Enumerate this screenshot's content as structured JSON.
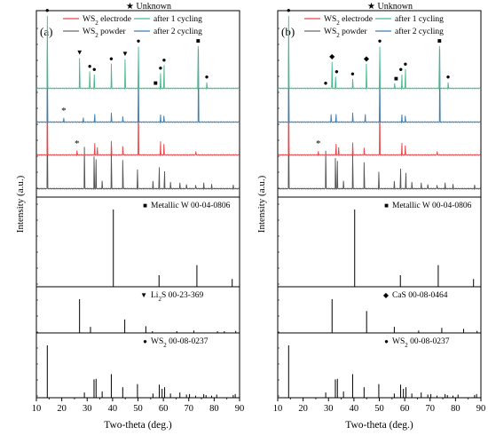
{
  "chart_data": [
    {
      "type": "line",
      "panel_label": "(a)",
      "header_note": "★ Unknown",
      "xlabel": "Two-theta (deg.)",
      "ylabel": "Intensity (a.u.)",
      "xlim": [
        10,
        90
      ],
      "x_ticks": [
        10,
        20,
        30,
        40,
        50,
        60,
        70,
        80,
        90
      ],
      "legend": [
        {
          "label": "WS",
          "sub": "2",
          "rest": " electrode",
          "color": "#e8474c"
        },
        {
          "label": "after 1 cycling",
          "sub": "",
          "rest": "",
          "color": "#46b98a"
        },
        {
          "label": "WS",
          "sub": "2",
          "rest": " powder",
          "color": "#6b6b6b"
        },
        {
          "label": "after 2 cycling",
          "sub": "",
          "rest": "",
          "color": "#3b7fb3"
        }
      ],
      "series": [
        {
          "name": "WS2 powder",
          "color": "#555555",
          "peaks": [
            [
              14.3,
              0.95
            ],
            [
              28.9,
              0.55
            ],
            [
              32.7,
              0.42
            ],
            [
              33.5,
              0.38
            ],
            [
              35.9,
              0.1
            ],
            [
              39.5,
              0.48
            ],
            [
              44.0,
              0.38
            ],
            [
              49.8,
              0.25
            ],
            [
              55.9,
              0.1
            ],
            [
              58.4,
              0.28
            ],
            [
              60.5,
              0.22
            ],
            [
              62.8,
              0.08
            ],
            [
              66.5,
              0.07
            ],
            [
              69.1,
              0.06
            ],
            [
              72.7,
              0.05
            ],
            [
              75.9,
              0.08
            ],
            [
              79.0,
              0.06
            ],
            [
              87.5,
              0.05
            ]
          ]
        },
        {
          "name": "WS2 electrode",
          "color": "#e8474c",
          "peaks": [
            [
              14.3,
              0.95
            ],
            [
              26.0,
              0.06
            ],
            [
              33.0,
              0.15
            ],
            [
              34.0,
              0.1
            ],
            [
              39.5,
              0.18
            ],
            [
              44.0,
              0.12
            ],
            [
              50.2,
              0.82
            ],
            [
              58.9,
              0.18
            ],
            [
              60.2,
              0.14
            ],
            [
              72.8,
              0.05
            ]
          ]
        },
        {
          "name": "after 2 cycling",
          "color": "#3b7fb3",
          "peaks": [
            [
              14.3,
              0.95
            ],
            [
              20.8,
              0.05
            ],
            [
              28.5,
              0.06
            ],
            [
              33.0,
              0.1
            ],
            [
              39.5,
              0.12
            ],
            [
              44.0,
              0.08
            ],
            [
              50.2,
              0.85
            ],
            [
              58.9,
              0.1
            ],
            [
              60.2,
              0.08
            ],
            [
              73.8,
              0.95
            ]
          ]
        },
        {
          "name": "after 1 cycling",
          "color": "#46b98a",
          "peaks": [
            [
              14.3,
              0.95
            ],
            [
              27.0,
              0.4
            ],
            [
              31.0,
              0.22
            ],
            [
              32.8,
              0.18
            ],
            [
              39.5,
              0.32
            ],
            [
              44.9,
              0.38
            ],
            [
              50.2,
              0.55
            ],
            [
              58.9,
              0.2
            ],
            [
              60.3,
              0.3
            ],
            [
              73.7,
              0.55
            ],
            [
              77.1,
              0.08
            ]
          ]
        }
      ],
      "annotations": [
        {
          "symbol": "●",
          "x": 14.3,
          "over": "after 1 cycling"
        },
        {
          "symbol": "▼",
          "x": 27.0,
          "over": "after 1 cycling"
        },
        {
          "symbol": "●",
          "x": 31.0,
          "over": "after 1 cycling"
        },
        {
          "symbol": "●",
          "x": 32.8,
          "over": "after 1 cycling"
        },
        {
          "symbol": "●",
          "x": 39.5,
          "over": "after 1 cycling"
        },
        {
          "symbol": "▼",
          "x": 44.9,
          "over": "after 1 cycling"
        },
        {
          "symbol": "●",
          "x": 50.2,
          "over": "after 1 cycling"
        },
        {
          "symbol": "■",
          "x": 56.9,
          "over": "after 1 cycling"
        },
        {
          "symbol": "●",
          "x": 58.9,
          "over": "after 1 cycling"
        },
        {
          "symbol": "●",
          "x": 60.3,
          "over": "after 1 cycling"
        },
        {
          "symbol": "■",
          "x": 73.7,
          "over": "after 1 cycling"
        },
        {
          "symbol": "●",
          "x": 77.1,
          "over": "after 1 cycling"
        },
        {
          "symbol": "*",
          "x": 20.8,
          "over": "after 2 cycling"
        },
        {
          "symbol": "*",
          "x": 26.0,
          "over": "WS2 electrode"
        }
      ],
      "references": [
        {
          "symbol": "■",
          "label": "Metallic W 00-04-0806",
          "sub_index": -1,
          "lines": [
            [
              40.3,
              1.0
            ],
            [
              58.3,
              0.15
            ],
            [
              73.2,
              0.28
            ],
            [
              87.1,
              0.1
            ]
          ]
        },
        {
          "symbol": "▼",
          "label": "Li",
          "sub": "2",
          "rest": "S 00-23-369",
          "lines": [
            [
              27.0,
              1.0
            ],
            [
              31.3,
              0.18
            ],
            [
              44.8,
              0.4
            ],
            [
              53.1,
              0.2
            ],
            [
              55.7,
              0.05
            ],
            [
              65.3,
              0.05
            ],
            [
              72.0,
              0.07
            ],
            [
              81.3,
              0.05
            ],
            [
              84.0,
              0.05
            ],
            [
              88.5,
              0.06
            ]
          ]
        },
        {
          "symbol": "●",
          "label": "WS",
          "sub": "2",
          "rest": " 00-08-0237",
          "lines": [
            [
              14.3,
              1.0
            ],
            [
              28.9,
              0.1
            ],
            [
              32.7,
              0.35
            ],
            [
              33.5,
              0.36
            ],
            [
              35.9,
              0.12
            ],
            [
              39.5,
              0.45
            ],
            [
              44.0,
              0.2
            ],
            [
              49.8,
              0.26
            ],
            [
              55.9,
              0.08
            ],
            [
              58.4,
              0.25
            ],
            [
              59.5,
              0.17
            ],
            [
              60.5,
              0.2
            ],
            [
              62.8,
              0.08
            ],
            [
              66.5,
              0.1
            ],
            [
              69.1,
              0.06
            ],
            [
              70.3,
              0.07
            ],
            [
              72.7,
              0.04
            ],
            [
              75.9,
              0.07
            ],
            [
              76.8,
              0.05
            ],
            [
              79.0,
              0.04
            ],
            [
              81.0,
              0.06
            ],
            [
              87.5,
              0.05
            ],
            [
              88.3,
              0.07
            ]
          ]
        }
      ]
    },
    {
      "type": "line",
      "panel_label": "(b)",
      "header_note": "★ Unknown",
      "xlabel": "Two-theta (deg.)",
      "ylabel": "Intensity (a.u.)",
      "xlim": [
        10,
        90
      ],
      "x_ticks": [
        10,
        20,
        30,
        40,
        50,
        60,
        70,
        80,
        90
      ],
      "legend": [
        {
          "label": "WS",
          "sub": "2",
          "rest": " electrode",
          "color": "#e8474c"
        },
        {
          "label": "after 1 cycling",
          "sub": "",
          "rest": "",
          "color": "#46b98a"
        },
        {
          "label": "WS",
          "sub": "2",
          "rest": " powder",
          "color": "#6b6b6b"
        },
        {
          "label": "after 2 cycling",
          "sub": "",
          "rest": "",
          "color": "#3b7fb3"
        }
      ],
      "series": [
        {
          "name": "WS2 powder",
          "color": "#555555",
          "peaks": [
            [
              14.3,
              0.95
            ],
            [
              28.9,
              0.5
            ],
            [
              32.7,
              0.4
            ],
            [
              33.5,
              0.36
            ],
            [
              35.9,
              0.1
            ],
            [
              39.5,
              0.45
            ],
            [
              44.0,
              0.35
            ],
            [
              49.8,
              0.22
            ],
            [
              55.9,
              0.1
            ],
            [
              58.4,
              0.26
            ],
            [
              60.5,
              0.2
            ],
            [
              62.8,
              0.08
            ],
            [
              66.5,
              0.07
            ],
            [
              69.1,
              0.06
            ],
            [
              72.7,
              0.05
            ],
            [
              75.9,
              0.08
            ],
            [
              79.0,
              0.06
            ],
            [
              87.5,
              0.05
            ]
          ]
        },
        {
          "name": "WS2 electrode",
          "color": "#e8474c",
          "peaks": [
            [
              14.3,
              0.95
            ],
            [
              26.0,
              0.05
            ],
            [
              33.0,
              0.14
            ],
            [
              34.0,
              0.1
            ],
            [
              39.5,
              0.16
            ],
            [
              44.0,
              0.1
            ],
            [
              50.2,
              0.82
            ],
            [
              58.9,
              0.16
            ],
            [
              60.2,
              0.12
            ],
            [
              72.8,
              0.05
            ]
          ]
        },
        {
          "name": "after 2 cycling",
          "color": "#3b7fb3",
          "peaks": [
            [
              14.3,
              0.95
            ],
            [
              31.0,
              0.1
            ],
            [
              33.0,
              0.1
            ],
            [
              39.5,
              0.12
            ],
            [
              44.5,
              0.1
            ],
            [
              50.2,
              0.85
            ],
            [
              58.9,
              0.1
            ],
            [
              60.2,
              0.08
            ],
            [
              73.8,
              0.95
            ]
          ]
        },
        {
          "name": "after 1 cycling",
          "color": "#46b98a",
          "peaks": [
            [
              14.3,
              0.95
            ],
            [
              31.4,
              0.35
            ],
            [
              32.8,
              0.15
            ],
            [
              39.5,
              0.12
            ],
            [
              44.9,
              0.32
            ],
            [
              50.2,
              0.55
            ],
            [
              56.0,
              0.06
            ],
            [
              58.9,
              0.18
            ],
            [
              60.3,
              0.25
            ],
            [
              73.7,
              0.55
            ],
            [
              77.1,
              0.08
            ]
          ]
        }
      ],
      "annotations": [
        {
          "symbol": "●",
          "x": 14.3,
          "over": "after 1 cycling"
        },
        {
          "symbol": "●",
          "x": 28.9,
          "over": "after 1 cycling"
        },
        {
          "symbol": "◆",
          "x": 31.4,
          "over": "after 1 cycling"
        },
        {
          "symbol": "●",
          "x": 33.2,
          "over": "after 1 cycling"
        },
        {
          "symbol": "●",
          "x": 39.5,
          "over": "after 1 cycling"
        },
        {
          "symbol": "◆",
          "x": 44.9,
          "over": "after 1 cycling"
        },
        {
          "symbol": "●",
          "x": 50.2,
          "over": "after 1 cycling"
        },
        {
          "symbol": "■",
          "x": 56.6,
          "over": "after 1 cycling"
        },
        {
          "symbol": "●",
          "x": 58.5,
          "over": "after 1 cycling"
        },
        {
          "symbol": "●",
          "x": 60.3,
          "over": "after 1 cycling"
        },
        {
          "symbol": "■",
          "x": 73.7,
          "over": "after 1 cycling"
        },
        {
          "symbol": "●",
          "x": 77.1,
          "over": "after 1 cycling"
        },
        {
          "symbol": "*",
          "x": 26.0,
          "over": "WS2 electrode"
        }
      ],
      "references": [
        {
          "symbol": "■",
          "label": "Metallic W 00-04-0806",
          "sub_index": -1,
          "lines": [
            [
              40.3,
              1.0
            ],
            [
              58.3,
              0.15
            ],
            [
              73.2,
              0.28
            ],
            [
              87.1,
              0.1
            ]
          ]
        },
        {
          "symbol": "◆",
          "label": "CaS 00-08-0464",
          "lines": [
            [
              31.4,
              1.0
            ],
            [
              45.0,
              0.65
            ],
            [
              55.9,
              0.18
            ],
            [
              65.5,
              0.07
            ],
            [
              74.6,
              0.15
            ],
            [
              83.2,
              0.12
            ],
            [
              88.5,
              0.06
            ]
          ]
        },
        {
          "symbol": "●",
          "label": "WS",
          "sub": "2",
          "rest": " 00-08-0237",
          "lines": [
            [
              14.3,
              1.0
            ],
            [
              28.9,
              0.1
            ],
            [
              32.7,
              0.35
            ],
            [
              33.5,
              0.36
            ],
            [
              35.9,
              0.12
            ],
            [
              39.5,
              0.45
            ],
            [
              44.0,
              0.2
            ],
            [
              49.8,
              0.26
            ],
            [
              55.9,
              0.08
            ],
            [
              58.4,
              0.25
            ],
            [
              59.5,
              0.17
            ],
            [
              60.5,
              0.2
            ],
            [
              62.8,
              0.08
            ],
            [
              66.5,
              0.1
            ],
            [
              69.1,
              0.06
            ],
            [
              70.3,
              0.07
            ],
            [
              72.7,
              0.04
            ],
            [
              75.9,
              0.07
            ],
            [
              76.8,
              0.05
            ],
            [
              79.0,
              0.04
            ],
            [
              81.0,
              0.06
            ],
            [
              87.5,
              0.05
            ],
            [
              88.3,
              0.07
            ]
          ]
        }
      ]
    }
  ]
}
